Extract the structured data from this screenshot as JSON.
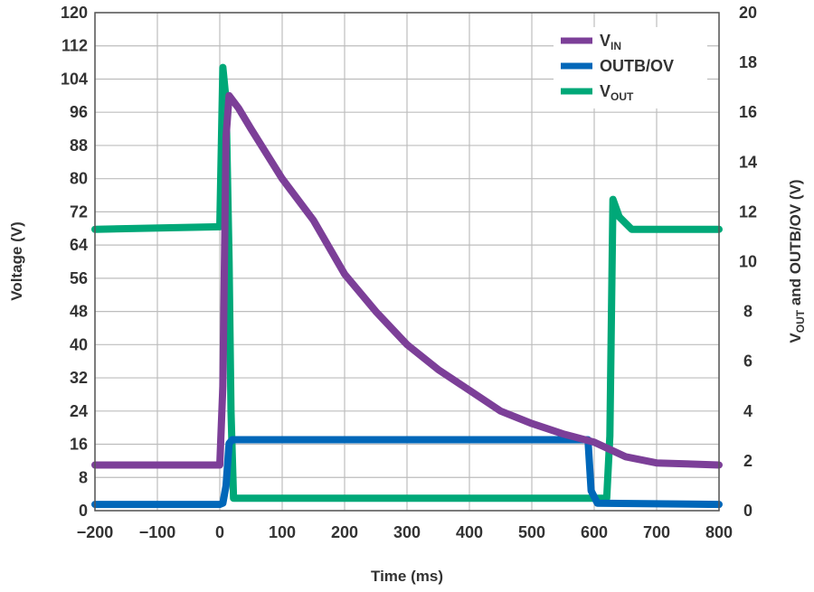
{
  "chart_data": {
    "type": "line",
    "x_axis": {
      "label": "Time (ms)",
      "range": [
        -200,
        800
      ],
      "ticks": [
        -200,
        -100,
        0,
        100,
        200,
        300,
        400,
        500,
        600,
        700,
        800
      ]
    },
    "y_left": {
      "label": "Voltage (V)",
      "range": [
        0,
        120
      ],
      "ticks": [
        0,
        8,
        16,
        24,
        32,
        40,
        48,
        56,
        64,
        72,
        80,
        88,
        96,
        104,
        112,
        120
      ]
    },
    "y_right": {
      "label_main": "V",
      "label_sub": "OUT",
      "label_rest": " and OUTB/OV (V)",
      "range": [
        0,
        20
      ],
      "ticks": [
        0,
        2,
        4,
        6,
        8,
        10,
        12,
        14,
        16,
        18,
        20
      ]
    },
    "grid": true,
    "legend_position": "top-right",
    "series": [
      {
        "name_main": "V",
        "name_sub": "IN",
        "axis": "left",
        "color": "#7c3f98",
        "points": [
          [
            -200,
            11.0
          ],
          [
            0,
            11.0
          ],
          [
            5,
            30
          ],
          [
            10,
            90
          ],
          [
            15,
            100
          ],
          [
            30,
            97
          ],
          [
            50,
            92
          ],
          [
            100,
            80
          ],
          [
            150,
            70
          ],
          [
            200,
            57
          ],
          [
            250,
            48
          ],
          [
            300,
            40
          ],
          [
            350,
            34
          ],
          [
            400,
            29
          ],
          [
            450,
            24
          ],
          [
            500,
            21
          ],
          [
            550,
            18.5
          ],
          [
            600,
            16.5
          ],
          [
            650,
            13
          ],
          [
            700,
            11.5
          ],
          [
            800,
            11.0
          ]
        ]
      },
      {
        "name": "OUTB/OV",
        "axis": "right",
        "color": "#0067b9",
        "points": [
          [
            -200,
            0.25
          ],
          [
            0,
            0.25
          ],
          [
            5,
            0.3
          ],
          [
            10,
            1.0
          ],
          [
            15,
            2.7
          ],
          [
            20,
            2.85
          ],
          [
            590,
            2.85
          ],
          [
            595,
            0.8
          ],
          [
            605,
            0.3
          ],
          [
            800,
            0.25
          ]
        ]
      },
      {
        "name_main": "V",
        "name_sub": "OUT",
        "axis": "right",
        "color": "#00a878",
        "points": [
          [
            -200,
            11.3
          ],
          [
            0,
            11.4
          ],
          [
            5,
            17.8
          ],
          [
            10,
            16.5
          ],
          [
            15,
            10
          ],
          [
            18,
            4
          ],
          [
            22,
            0.5
          ],
          [
            30,
            0.5
          ],
          [
            620,
            0.5
          ],
          [
            625,
            3
          ],
          [
            630,
            12.5
          ],
          [
            640,
            11.8
          ],
          [
            660,
            11.3
          ],
          [
            700,
            11.3
          ],
          [
            800,
            11.3
          ]
        ]
      }
    ]
  }
}
